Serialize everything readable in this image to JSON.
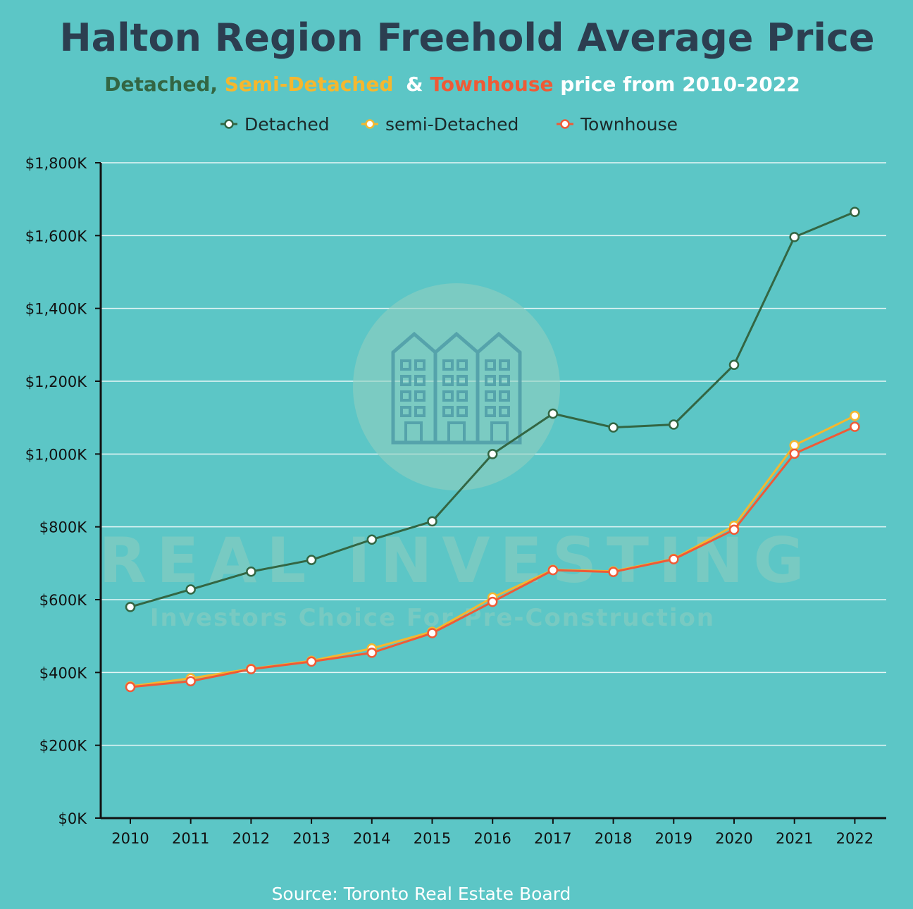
{
  "colors": {
    "background": "#5cc6c6",
    "title": "#2c3e50",
    "detached": "#336643",
    "semi": "#f5b72e",
    "town": "#ef5a36",
    "white": "#ffffff",
    "grid": "#e6f6f6",
    "axis": "#111111"
  },
  "subtitle": {
    "part1": "Detached,",
    "part2": "Semi-Detached",
    "part3": "&",
    "part4": "Townhouse",
    "part5": "price from 2010-2022"
  },
  "watermark": {
    "name": "REAL INVESTING",
    "tagline": "Investors Choice For Pre-Construction",
    "icon": "townhouse-logo-icon"
  },
  "source": "Source: Toronto Real Estate Board",
  "chart_data": {
    "type": "line",
    "title": "Halton Region Freehold Average Price",
    "xlabel": "",
    "ylabel": "",
    "ylim": [
      0,
      1800
    ],
    "yticks": [
      0,
      200,
      400,
      600,
      800,
      1000,
      1200,
      1400,
      1600,
      1800
    ],
    "ytick_labels": [
      "$0K",
      "$200K",
      "$400K",
      "$600K",
      "$800K",
      "$1,000K",
      "$1,200K",
      "$1,400K",
      "$1,600K",
      "$1,800K"
    ],
    "categories": [
      "2010",
      "2011",
      "2012",
      "2013",
      "2014",
      "2015",
      "2016",
      "2017",
      "2018",
      "2019",
      "2020",
      "2021",
      "2022"
    ],
    "grid": true,
    "legend_position": "top-center",
    "series": [
      {
        "name": "Detached",
        "color": "#336643",
        "values": [
          580,
          628,
          677,
          709,
          765,
          815,
          1000,
          1111,
          1073,
          1081,
          1245,
          1596,
          1665
        ]
      },
      {
        "name": "semi-Detached",
        "color": "#f5b72e",
        "values": [
          362,
          384,
          410,
          432,
          466,
          512,
          606,
          682,
          678,
          712,
          803,
          1024,
          1105
        ]
      },
      {
        "name": "Townhouse",
        "color": "#ef5a36",
        "values": [
          360,
          376,
          409,
          430,
          454,
          508,
          594,
          681,
          676,
          711,
          792,
          1001,
          1075
        ]
      }
    ]
  }
}
